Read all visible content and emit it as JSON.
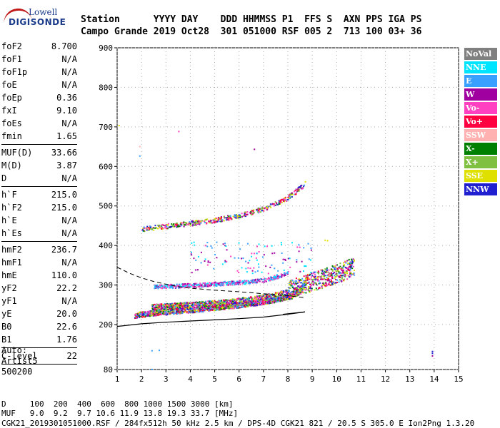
{
  "logo": {
    "line1": "Lowell",
    "line2": "DIGISONDE"
  },
  "header": {
    "row1": "Station      YYYY DAY    DDD HHMMSS P1  FFS S  AXN PPS IGA PS",
    "row2": "Campo Grande 2019 Oct28  301 051000 RSF 005 2  713 100 03+ 36"
  },
  "params": [
    {
      "name": "foF2",
      "value": "8.700"
    },
    {
      "name": "foF1",
      "value": "N/A"
    },
    {
      "name": "foF1p",
      "value": "N/A"
    },
    {
      "name": "foE",
      "value": "N/A"
    },
    {
      "name": "foEp",
      "value": "0.36"
    },
    {
      "name": "fxI",
      "value": "9.10"
    },
    {
      "name": "foEs",
      "value": "N/A"
    },
    {
      "name": "fmin",
      "value": "1.65"
    },
    {
      "sep": true
    },
    {
      "name": "MUF(D)",
      "value": "33.66"
    },
    {
      "name": "M(D)",
      "value": "3.87"
    },
    {
      "name": "D",
      "value": "N/A"
    },
    {
      "sep": true
    },
    {
      "name": "h`F",
      "value": "215.0"
    },
    {
      "name": "h`F2",
      "value": "215.0"
    },
    {
      "name": "h`E",
      "value": "N/A"
    },
    {
      "name": "h`Es",
      "value": "N/A"
    },
    {
      "sep": true
    },
    {
      "name": "hmF2",
      "value": "236.7"
    },
    {
      "name": "hmF1",
      "value": "N/A"
    },
    {
      "name": "hmE",
      "value": "110.0"
    },
    {
      "name": "yF2",
      "value": "22.2"
    },
    {
      "name": "yF1",
      "value": "N/A"
    },
    {
      "name": "yE",
      "value": "20.0"
    },
    {
      "name": "B0",
      "value": "22.6"
    },
    {
      "name": "B1",
      "value": "1.76"
    },
    {
      "sep": true
    },
    {
      "name": "C-level",
      "value": "22"
    },
    {
      "sep": true
    }
  ],
  "auto": {
    "line1": "Auto:",
    "line2": "Artist5",
    "line3": "500200"
  },
  "legend": [
    {
      "label": "NoVal",
      "color": "#808080"
    },
    {
      "label": "NNE",
      "color": "#00e5ff"
    },
    {
      "label": "E",
      "color": "#3aa0ff"
    },
    {
      "label": "W",
      "color": "#a000a0"
    },
    {
      "label": "Vo-",
      "color": "#ff40c0"
    },
    {
      "label": "Vo+",
      "color": "#ff0040"
    },
    {
      "label": "SSW",
      "color": "#ffb0b0"
    },
    {
      "label": "X-",
      "color": "#008000"
    },
    {
      "label": "X+",
      "color": "#80c040"
    },
    {
      "label": "SSE",
      "color": "#e0e000"
    },
    {
      "label": "NNW",
      "color": "#2020d0"
    }
  ],
  "footer": {
    "line1": "D     100  200  400  600  800 1000 1500 3000 [km]",
    "line2": "MUF   9.0  9.2  9.7 10.6 11.9 13.8 19.3 33.7 [MHz]",
    "line3": "CGK21_2019301051000.RSF / 284fx512h 50 kHz 2.5 km / DPS-4D CGK21 821 / 20.5 S 305.0 E Ion2Png 1.3.20"
  },
  "chart_data": {
    "type": "scatter",
    "title": "",
    "xlabel": "",
    "ylabel": "",
    "xlim": [
      1,
      15
    ],
    "ylim": [
      80,
      900
    ],
    "x_ticks": [
      1,
      2,
      3,
      4,
      5,
      6,
      7,
      8,
      9,
      10,
      11,
      12,
      13,
      14,
      15
    ],
    "y_ticks": [
      80,
      200,
      300,
      400,
      500,
      600,
      700,
      800,
      900
    ],
    "grid": true,
    "traces": [
      {
        "name": "F2 O-trace",
        "x": [
          1.7,
          2.5,
          3.5,
          4.5,
          5.5,
          6.5,
          7.5,
          8.0,
          8.5,
          8.8
        ],
        "y": [
          222,
          228,
          233,
          238,
          245,
          252,
          262,
          270,
          285,
          320
        ]
      },
      {
        "name": "X-trace",
        "x": [
          2.4,
          3.5,
          4.5,
          5.5,
          6.5,
          7.5,
          8.0,
          8.5,
          9.0,
          9.6,
          10.2,
          10.7
        ],
        "y": [
          240,
          244,
          248,
          252,
          260,
          270,
          278,
          290,
          300,
          312,
          325,
          340
        ]
      },
      {
        "name": "spread",
        "x": [
          2.5,
          3.5,
          4.5,
          5.5,
          6.5,
          7.0,
          7.5,
          8.0
        ],
        "y": [
          295,
          297,
          300,
          304,
          308,
          312,
          320,
          330
        ]
      },
      {
        "name": "multiple hop",
        "x": [
          2.0,
          3.0,
          4.0,
          5.0,
          6.0,
          7.0,
          8.0,
          8.7
        ],
        "y": [
          440,
          448,
          455,
          463,
          475,
          492,
          520,
          555
        ]
      }
    ],
    "profile_line": {
      "x": [
        1.0,
        2.0,
        3.0,
        4.0,
        5.0,
        6.0,
        7.0,
        8.0,
        8.7
      ],
      "y": [
        195,
        202,
        206,
        209,
        212,
        215,
        219,
        226,
        232
      ]
    },
    "dashed_line": {
      "x": [
        1.0,
        1.5,
        2.0,
        2.5,
        3.0,
        3.5,
        4.0,
        5.0,
        6.0,
        7.0,
        8.0,
        8.7
      ],
      "y": [
        345,
        330,
        318,
        309,
        302,
        296,
        292,
        287,
        283,
        278,
        273,
        268
      ]
    },
    "sparse": [
      {
        "x": 1.05,
        "y": 705,
        "color": "#e0e000"
      },
      {
        "x": 1.9,
        "y": 628,
        "color": "#3aa0ff"
      },
      {
        "x": 1.9,
        "y": 652,
        "color": "#ffb0b0"
      },
      {
        "x": 3.5,
        "y": 690,
        "color": "#ff40c0"
      },
      {
        "x": 6.6,
        "y": 645,
        "color": "#a000a0"
      },
      {
        "x": 2.4,
        "y": 82,
        "color": "#3aa0ff"
      },
      {
        "x": 2.4,
        "y": 132,
        "color": "#3aa0ff"
      },
      {
        "x": 2.7,
        "y": 133,
        "color": "#3aa0ff"
      },
      {
        "x": 9.5,
        "y": 415,
        "color": "#e0e000"
      },
      {
        "x": 9.6,
        "y": 414,
        "color": "#e0e000"
      },
      {
        "x": 13.9,
        "y": 118,
        "color": "#a000a0"
      },
      {
        "x": 13.9,
        "y": 125,
        "color": "#2020d0"
      },
      {
        "x": 13.9,
        "y": 130,
        "color": "#2020d0"
      }
    ]
  }
}
